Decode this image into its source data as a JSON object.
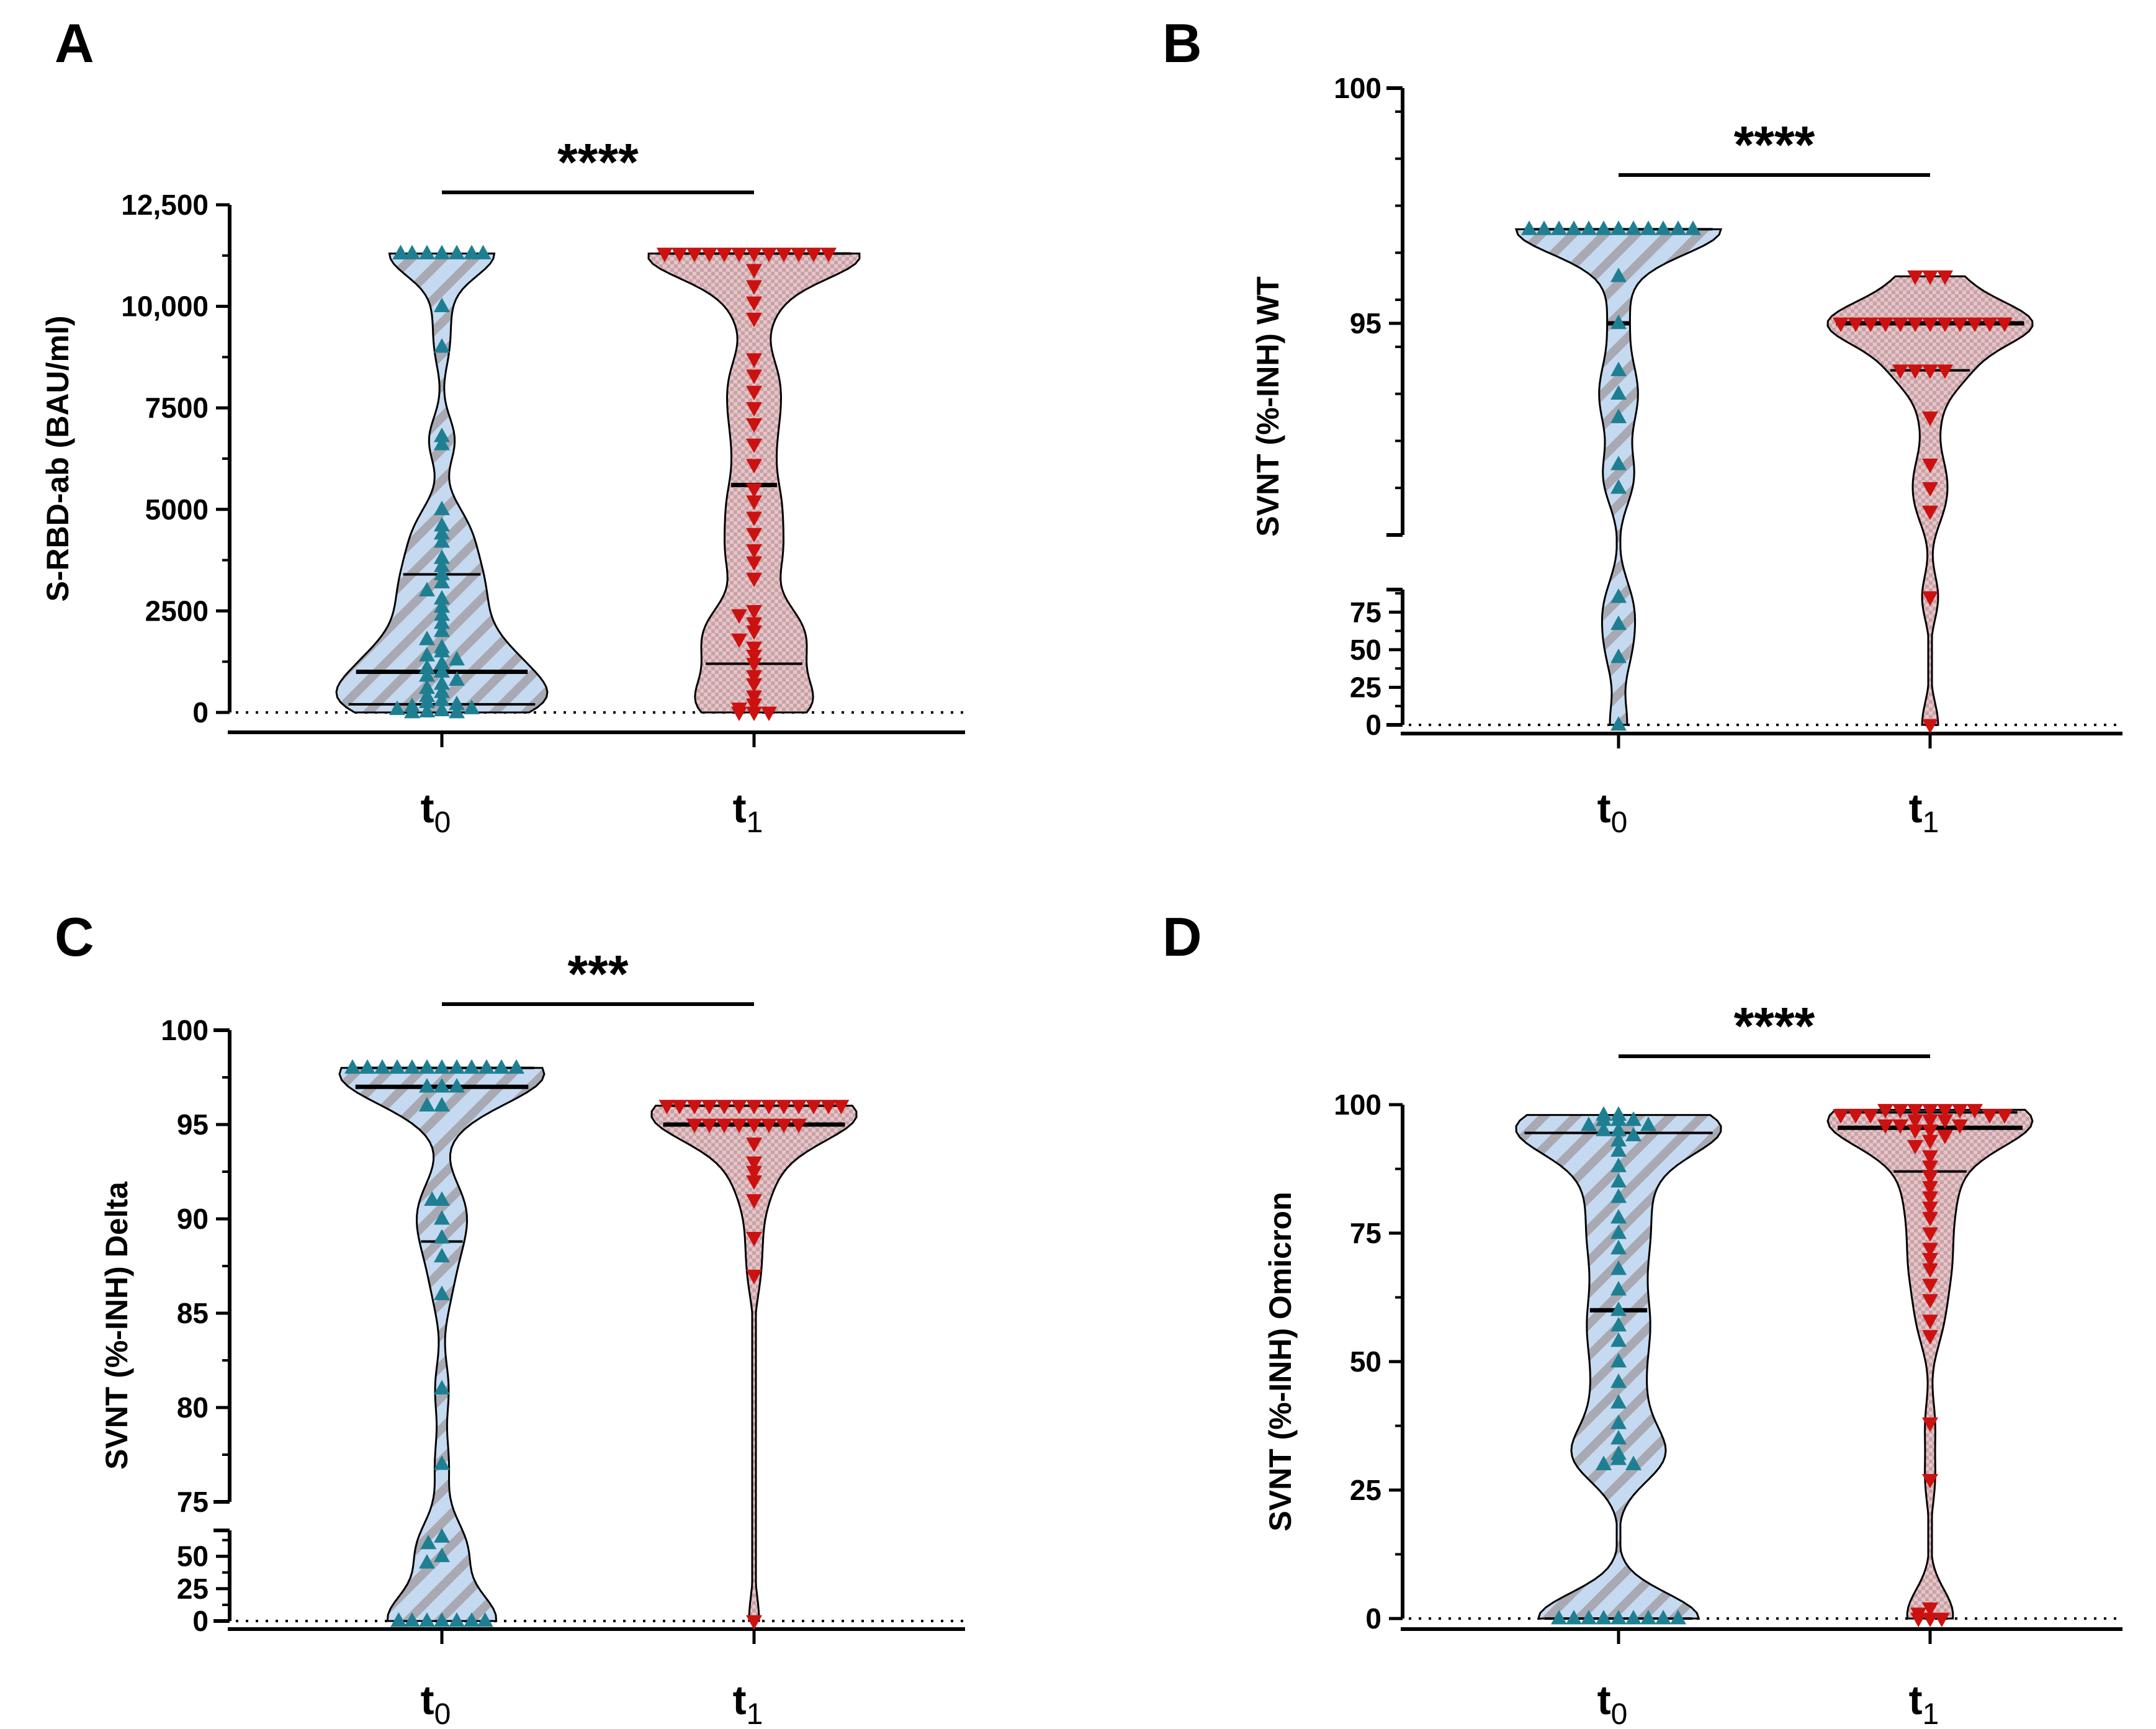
{
  "colors": {
    "t0_fill": "#c5daf0",
    "t0_stripe": "#a9a9b3",
    "t0_marker": "#1f7f92",
    "t1_fill": "#e8c4c7",
    "t1_check": "#c5a3a8",
    "t1_marker": "#cc1111",
    "axis": "#000000"
  },
  "chart_data": [
    {
      "panel": "A",
      "type": "violin",
      "ylabel": "S-RBD-ab (BAU/ml)",
      "categories": [
        {
          "main": "t",
          "sub": "0"
        },
        {
          "main": "t",
          "sub": "1"
        }
      ],
      "yticks": [
        {
          "value": 0,
          "label": "0"
        },
        {
          "value": 2500,
          "label": "2500"
        },
        {
          "value": 5000,
          "label": "5000"
        },
        {
          "value": 7500,
          "label": "7500"
        },
        {
          "value": 10000,
          "label": "10,000"
        },
        {
          "value": 12500,
          "label": "12,500"
        }
      ],
      "ylim": [
        0,
        12500
      ],
      "significance": "****",
      "series": [
        {
          "name": "t0",
          "median": 1000,
          "quartiles": [
            200,
            3400
          ],
          "points": [
            11300,
            11300,
            11300,
            11300,
            11300,
            11300,
            11300,
            11300,
            10000,
            9000,
            6800,
            6600,
            5000,
            4600,
            4400,
            4200,
            3800,
            3600,
            3400,
            3200,
            3000,
            2800,
            2600,
            2400,
            2200,
            2000,
            1800,
            1600,
            1500,
            1400,
            1300,
            1200,
            1100,
            1000,
            900,
            800,
            700,
            600,
            500,
            400,
            300,
            250,
            200,
            150,
            100,
            80,
            50,
            20,
            0,
            0
          ]
        },
        {
          "name": "t1",
          "median": 5600,
          "quartiles": [
            1200,
            11300
          ],
          "points": [
            11300,
            11300,
            11300,
            11300,
            11300,
            11300,
            11300,
            11300,
            11300,
            11300,
            11300,
            11300,
            10900,
            10500,
            10100,
            9700,
            8700,
            8300,
            7900,
            7500,
            7100,
            6600,
            6100,
            5500,
            5200,
            4800,
            4400,
            4000,
            3700,
            3300,
            2500,
            2400,
            2200,
            2000,
            1800,
            1600,
            1400,
            1200,
            900,
            700,
            400,
            200,
            100,
            0,
            0,
            0
          ]
        }
      ]
    },
    {
      "panel": "B",
      "type": "violin",
      "ylabel": "SVNT (%-INH) WT",
      "categories": [
        {
          "main": "t",
          "sub": "0"
        },
        {
          "main": "t",
          "sub": "1"
        }
      ],
      "yticks_upper": [
        {
          "value": 95,
          "label": "95"
        },
        {
          "value": 100,
          "label": "100"
        }
      ],
      "yticks_lower": [
        {
          "value": 0,
          "label": "0"
        },
        {
          "value": 25,
          "label": "25"
        },
        {
          "value": 50,
          "label": "50"
        },
        {
          "value": 75,
          "label": "75"
        }
      ],
      "ylim_upper": [
        90.5,
        100
      ],
      "ylim_lower": [
        0,
        90
      ],
      "significance": "****",
      "series": [
        {
          "name": "t0",
          "median": 95,
          "quartiles": [
            95,
            97
          ],
          "points": [
            97,
            97,
            97,
            97,
            97,
            97,
            97,
            97,
            97,
            97,
            97,
            97,
            96,
            95,
            94,
            93.5,
            93,
            92,
            91.5,
            85,
            67,
            45,
            0
          ]
        },
        {
          "name": "t1",
          "median": 95,
          "quartiles": [
            94,
            95
          ],
          "points": [
            96,
            96,
            96,
            95,
            95,
            95,
            95,
            95,
            95,
            95,
            95,
            95,
            95,
            95,
            95,
            94,
            94,
            94,
            94,
            93,
            92,
            91.5,
            91,
            85,
            0
          ]
        }
      ]
    },
    {
      "panel": "C",
      "type": "violin",
      "ylabel": "SVNT (%-INH) Delta",
      "categories": [
        {
          "main": "t",
          "sub": "0"
        },
        {
          "main": "t",
          "sub": "1"
        }
      ],
      "yticks_upper": [
        {
          "value": 75,
          "label": "75"
        },
        {
          "value": 80,
          "label": "80"
        },
        {
          "value": 85,
          "label": "85"
        },
        {
          "value": 90,
          "label": "90"
        },
        {
          "value": 95,
          "label": "95"
        },
        {
          "value": 100,
          "label": "100"
        }
      ],
      "yticks_lower": [
        {
          "value": 0,
          "label": "0"
        },
        {
          "value": 25,
          "label": "25"
        },
        {
          "value": 50,
          "label": "50"
        }
      ],
      "ylim_upper": [
        75,
        100
      ],
      "ylim_lower": [
        0,
        70
      ],
      "significance": "***",
      "series": [
        {
          "name": "t0",
          "median": 97,
          "quartiles": [
            88.8,
            98
          ],
          "points": [
            98,
            98,
            98,
            98,
            98,
            98,
            98,
            98,
            98,
            98,
            98,
            98,
            97,
            97,
            97,
            96,
            96,
            91,
            91,
            90,
            89,
            88,
            86,
            81,
            77,
            65,
            60,
            50,
            45,
            0,
            0,
            0,
            0,
            0,
            0,
            0,
            0
          ]
        },
        {
          "name": "t1",
          "median": 95,
          "quartiles": [
            95,
            96
          ],
          "points": [
            96,
            96,
            96,
            96,
            96,
            96,
            96,
            96,
            96,
            96,
            96,
            96,
            96,
            95,
            95,
            95,
            95,
            95,
            95,
            95,
            95,
            94,
            93,
            92.5,
            92,
            91,
            89,
            87,
            0
          ]
        }
      ]
    },
    {
      "panel": "D",
      "type": "violin",
      "ylabel": "SVNT (%-INH) Omicron",
      "categories": [
        {
          "main": "t",
          "sub": "0"
        },
        {
          "main": "t",
          "sub": "1"
        }
      ],
      "yticks": [
        {
          "value": 0,
          "label": "0"
        },
        {
          "value": 25,
          "label": "25"
        },
        {
          "value": 50,
          "label": "50"
        },
        {
          "value": 75,
          "label": "75"
        },
        {
          "value": 100,
          "label": "100"
        }
      ],
      "ylim": [
        0,
        100
      ],
      "significance": "****",
      "series": [
        {
          "name": "t0",
          "median": 60,
          "quartiles": [
            0,
            94.5
          ],
          "points": [
            98,
            98,
            97,
            97,
            97,
            96,
            96,
            95,
            95,
            94,
            93,
            91,
            88,
            85,
            82,
            78,
            75,
            72,
            68,
            64,
            60,
            57,
            54,
            50,
            46,
            42,
            38,
            35,
            32,
            31,
            30,
            30,
            0,
            0,
            0,
            0,
            0,
            0,
            0,
            0,
            0
          ]
        },
        {
          "name": "t1",
          "median": 95.5,
          "quartiles": [
            87,
            98.5
          ],
          "points": [
            99,
            99,
            99,
            99,
            99,
            99,
            99,
            98,
            98,
            98,
            98,
            98,
            97,
            97,
            97,
            96,
            96,
            96,
            95,
            95,
            94,
            93,
            92,
            90,
            88,
            86,
            84,
            82,
            80,
            78,
            75,
            72,
            70,
            68,
            65,
            62,
            58,
            55,
            38,
            27,
            2,
            1,
            0,
            0,
            0
          ]
        }
      ]
    }
  ]
}
